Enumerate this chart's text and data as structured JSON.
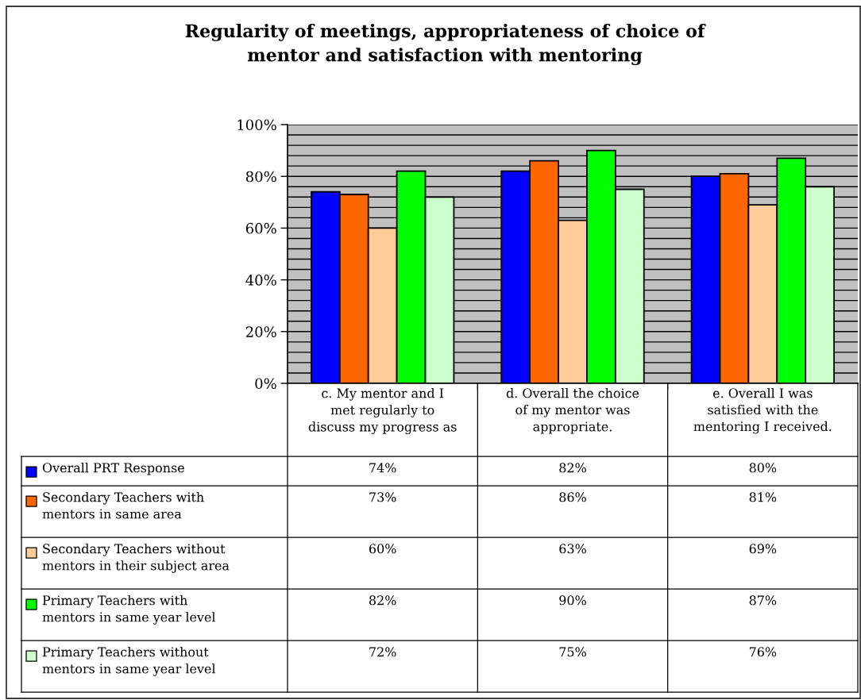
{
  "chart_data": {
    "type": "bar",
    "title": "Regularity of meetings, appropriateness of choice of\nmentor and satisfaction with mentoring",
    "categories": [
      "c. My mentor and I\nmet regularly to\ndiscuss my progress as",
      "d. Overall the choice\nof my mentor was\nappropriate.",
      "e. Overall I was\nsatisfied with the\nmentoring I received."
    ],
    "series": [
      {
        "name": "Overall PRT Response",
        "color": "#0000ff",
        "values": [
          74,
          82,
          80
        ],
        "value_labels": [
          "74%",
          "82%",
          "80%"
        ]
      },
      {
        "name": "Secondary Teachers with\nmentors in same area",
        "color": "#ff6600",
        "values": [
          73,
          86,
          81
        ],
        "value_labels": [
          "73%",
          "86%",
          "81%"
        ]
      },
      {
        "name": "Secondary Teachers without\nmentors in their subject area",
        "color": "#ffcc99",
        "values": [
          60,
          63,
          69
        ],
        "value_labels": [
          "60%",
          "63%",
          "69%"
        ]
      },
      {
        "name": "Primary Teachers with\nmentors in same year level",
        "color": "#00ff00",
        "values": [
          82,
          90,
          87
        ],
        "value_labels": [
          "82%",
          "90%",
          "87%"
        ]
      },
      {
        "name": "Primary Teachers without\nmentors in same year level",
        "color": "#ccffcc",
        "values": [
          72,
          75,
          76
        ],
        "value_labels": [
          "72%",
          "75%",
          "76%"
        ]
      }
    ],
    "ylim": [
      0,
      100
    ],
    "yticks": [
      {
        "value": 0,
        "label": "0%"
      },
      {
        "value": 4,
        "label": null
      },
      {
        "value": 8,
        "label": null
      },
      {
        "value": 12,
        "label": null
      },
      {
        "value": 16,
        "label": null
      },
      {
        "value": 20,
        "label": "20%"
      },
      {
        "value": 24,
        "label": null
      },
      {
        "value": 28,
        "label": null
      },
      {
        "value": 32,
        "label": null
      },
      {
        "value": 36,
        "label": null
      },
      {
        "value": 40,
        "label": "40%"
      },
      {
        "value": 44,
        "label": null
      },
      {
        "value": 48,
        "label": null
      },
      {
        "value": 52,
        "label": null
      },
      {
        "value": 56,
        "label": null
      },
      {
        "value": 60,
        "label": "60%"
      },
      {
        "value": 64,
        "label": null
      },
      {
        "value": 68,
        "label": null
      },
      {
        "value": 72,
        "label": null
      },
      {
        "value": 76,
        "label": null
      },
      {
        "value": 80,
        "label": "80%"
      },
      {
        "value": 84,
        "label": null
      },
      {
        "value": 88,
        "label": null
      },
      {
        "value": 92,
        "label": null
      },
      {
        "value": 96,
        "label": null
      },
      {
        "value": 100,
        "label": "100%"
      }
    ],
    "grid": "y",
    "legend": "bottom left"
  }
}
